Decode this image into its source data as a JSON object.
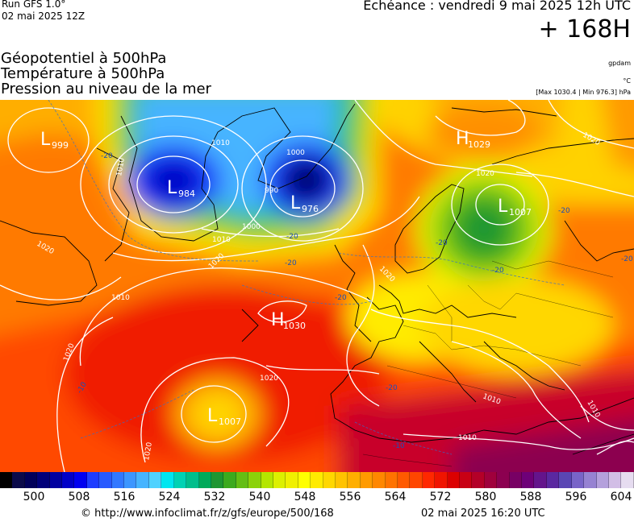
{
  "header": {
    "run_title": "Run GFS 1.0°",
    "run_date": "02 mai 2025 12Z",
    "valid_time": "Echéance : vendredi 9 mai 2025 12h UTC",
    "lead_time": "+ 168H"
  },
  "layers": [
    "Géopotentiel à 500hPa",
    "Température à 500hPa",
    "Pression au niveau de la mer"
  ],
  "units": {
    "geopotential": "gpdam",
    "temperature": "°C",
    "pressure_range": "[Max 1030.4 | Min 976.3] hPa"
  },
  "map": {
    "region": "Europe / North Atlantic",
    "pressure_centers": [
      {
        "type": "L",
        "value": "999"
      },
      {
        "type": "L",
        "value": "984"
      },
      {
        "type": "L",
        "value": "976"
      },
      {
        "type": "H",
        "value": "1029"
      },
      {
        "type": "L",
        "value": "1007"
      },
      {
        "type": "H",
        "value": "1030"
      },
      {
        "type": "L",
        "value": "1007"
      }
    ],
    "isobar_labels": [
      "1010",
      "1010",
      "1000",
      "990",
      "1010",
      "1000",
      "1020",
      "1020",
      "1020",
      "1020",
      "1020",
      "1020",
      "1010",
      "1010",
      "1010",
      "1020",
      "1010",
      "1020"
    ],
    "isotherm_labels": [
      "-20",
      "-20",
      "-20",
      "-20",
      "-20",
      "-20",
      "-20",
      "-20",
      "-10",
      "-10",
      "-20"
    ]
  },
  "colorbar": {
    "title_unit": "gpdam",
    "ticks": [
      "500",
      "508",
      "516",
      "524",
      "532",
      "540",
      "548",
      "556",
      "564",
      "572",
      "580",
      "588",
      "596",
      "604"
    ],
    "colors": [
      "#000000",
      "#0a0a4a",
      "#00005a",
      "#00007a",
      "#0000a0",
      "#0000c8",
      "#0000f0",
      "#1e3cff",
      "#285aff",
      "#3278ff",
      "#3c96ff",
      "#46b4ff",
      "#50d2ff",
      "#00e6f0",
      "#00d2b4",
      "#00be8c",
      "#00aa5a",
      "#1e9632",
      "#3caa1e",
      "#64be14",
      "#8cd20a",
      "#b4e600",
      "#dcf000",
      "#f0f000",
      "#ffff00",
      "#ffeb00",
      "#ffd700",
      "#ffc300",
      "#ffaf00",
      "#ff9b00",
      "#ff8700",
      "#ff7300",
      "#ff5a00",
      "#ff4600",
      "#ff2800",
      "#f01400",
      "#dc0000",
      "#c80014",
      "#b40028",
      "#a0003c",
      "#8c0050",
      "#780064",
      "#6e0078",
      "#64148c",
      "#5a28a0",
      "#5a46b4",
      "#7864c8",
      "#9682d2",
      "#b4a0dc",
      "#d2bee6",
      "#e6dcf0"
    ]
  },
  "footer": {
    "credit": "© http://www.infoclimat.fr/z/gfs/europe/500/168",
    "generated": "02 mai 2025 16:20 UTC"
  }
}
